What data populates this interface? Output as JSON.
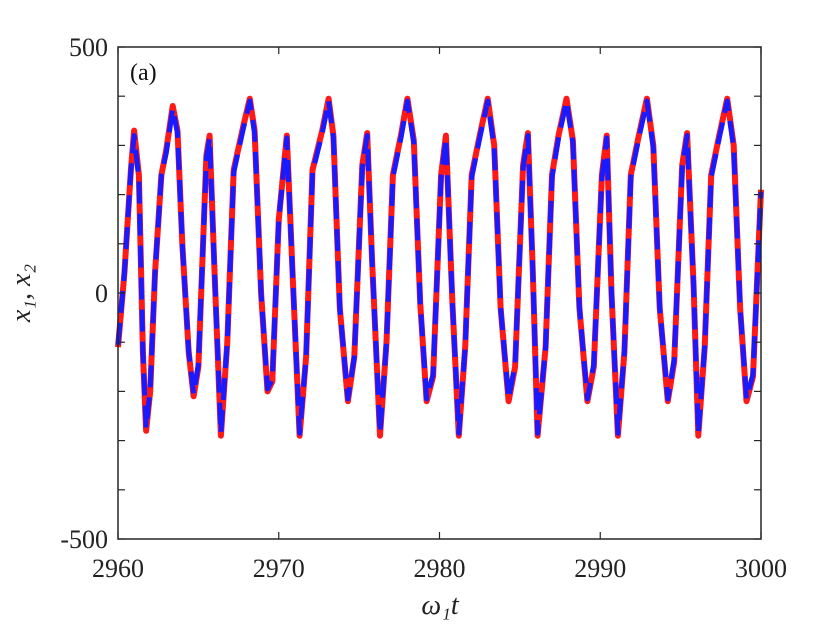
{
  "chart_data": {
    "type": "line",
    "title": "",
    "panel_label": "(a)",
    "xlabel": "ω₁t",
    "ylabel": "x₁, x₂",
    "xlim": [
      2960,
      3000
    ],
    "ylim": [
      -500,
      500
    ],
    "x_ticks": [
      "2960",
      "2970",
      "2980",
      "2990",
      "3000"
    ],
    "y_ticks": [
      "-500",
      "0",
      "500"
    ],
    "grid": false,
    "series": [
      {
        "style": "solid",
        "color": "#ff1a1a",
        "points": [
          [
            2960.0,
            -110
          ],
          [
            2960.4,
            40
          ],
          [
            2960.8,
            250
          ],
          [
            2961.0,
            330
          ],
          [
            2961.3,
            240
          ],
          [
            2961.55,
            -120
          ],
          [
            2961.75,
            -280
          ],
          [
            2962.0,
            -200
          ],
          [
            2962.3,
            40
          ],
          [
            2962.7,
            240
          ],
          [
            2963.0,
            290
          ],
          [
            2963.4,
            380
          ],
          [
            2963.7,
            330
          ],
          [
            2964.0,
            100
          ],
          [
            2964.4,
            -120
          ],
          [
            2964.7,
            -210
          ],
          [
            2965.0,
            -150
          ],
          [
            2965.5,
            280
          ],
          [
            2965.7,
            320
          ],
          [
            2966.0,
            50
          ],
          [
            2966.4,
            -290
          ],
          [
            2966.8,
            -100
          ],
          [
            2967.2,
            250
          ],
          [
            2967.8,
            340
          ],
          [
            2968.2,
            395
          ],
          [
            2968.5,
            330
          ],
          [
            2968.9,
            0
          ],
          [
            2969.3,
            -200
          ],
          [
            2969.6,
            -180
          ],
          [
            2970.0,
            150
          ],
          [
            2970.5,
            320
          ],
          [
            2970.9,
            10
          ],
          [
            2971.3,
            -290
          ],
          [
            2971.7,
            -130
          ],
          [
            2972.1,
            250
          ],
          [
            2972.7,
            330
          ],
          [
            2973.1,
            395
          ],
          [
            2973.4,
            320
          ],
          [
            2973.8,
            -30
          ],
          [
            2974.3,
            -220
          ],
          [
            2974.7,
            -130
          ],
          [
            2975.2,
            260
          ],
          [
            2975.5,
            325
          ],
          [
            2975.8,
            70
          ],
          [
            2976.3,
            -290
          ],
          [
            2976.7,
            -100
          ],
          [
            2977.1,
            240
          ],
          [
            2977.6,
            320
          ],
          [
            2978.0,
            395
          ],
          [
            2978.4,
            310
          ],
          [
            2978.8,
            -20
          ],
          [
            2979.2,
            -220
          ],
          [
            2979.6,
            -170
          ],
          [
            2980.1,
            240
          ],
          [
            2980.4,
            320
          ],
          [
            2980.8,
            -20
          ],
          [
            2981.2,
            -290
          ],
          [
            2981.6,
            -110
          ],
          [
            2982.0,
            240
          ],
          [
            2982.5,
            320
          ],
          [
            2983.0,
            395
          ],
          [
            2983.4,
            300
          ],
          [
            2983.8,
            -30
          ],
          [
            2984.3,
            -220
          ],
          [
            2984.7,
            -150
          ],
          [
            2985.2,
            260
          ],
          [
            2985.5,
            325
          ],
          [
            2985.8,
            50
          ],
          [
            2986.1,
            -290
          ],
          [
            2986.6,
            -110
          ],
          [
            2987.0,
            240
          ],
          [
            2987.4,
            320
          ],
          [
            2987.9,
            395
          ],
          [
            2988.3,
            310
          ],
          [
            2988.7,
            -30
          ],
          [
            2989.2,
            -220
          ],
          [
            2989.6,
            -150
          ],
          [
            2990.1,
            240
          ],
          [
            2990.4,
            320
          ],
          [
            2990.7,
            0
          ],
          [
            2991.1,
            -290
          ],
          [
            2991.5,
            -120
          ],
          [
            2991.9,
            240
          ],
          [
            2992.4,
            320
          ],
          [
            2992.9,
            395
          ],
          [
            2993.3,
            300
          ],
          [
            2993.7,
            -30
          ],
          [
            2994.2,
            -220
          ],
          [
            2994.6,
            -140
          ],
          [
            2995.1,
            260
          ],
          [
            2995.4,
            325
          ],
          [
            2995.8,
            20
          ],
          [
            2996.1,
            -290
          ],
          [
            2996.5,
            -110
          ],
          [
            2996.9,
            240
          ],
          [
            2997.4,
            320
          ],
          [
            2997.9,
            395
          ],
          [
            2998.3,
            300
          ],
          [
            2998.7,
            -30
          ],
          [
            2999.1,
            -220
          ],
          [
            2999.5,
            -170
          ],
          [
            3000.0,
            210
          ]
        ]
      },
      {
        "style": "dashed",
        "color": "#1a1aff",
        "points": [
          [
            2960.0,
            -105
          ],
          [
            2960.4,
            40
          ],
          [
            2960.8,
            250
          ],
          [
            2961.0,
            320
          ],
          [
            2961.3,
            230
          ],
          [
            2961.55,
            -120
          ],
          [
            2961.75,
            -275
          ],
          [
            2962.0,
            -195
          ],
          [
            2962.3,
            40
          ],
          [
            2962.7,
            240
          ],
          [
            2963.0,
            285
          ],
          [
            2963.4,
            375
          ],
          [
            2963.7,
            325
          ],
          [
            2964.0,
            100
          ],
          [
            2964.4,
            -120
          ],
          [
            2964.7,
            -205
          ],
          [
            2965.0,
            -145
          ],
          [
            2965.5,
            275
          ],
          [
            2965.7,
            315
          ],
          [
            2966.0,
            50
          ],
          [
            2966.4,
            -285
          ],
          [
            2966.8,
            -100
          ],
          [
            2967.2,
            245
          ],
          [
            2967.8,
            335
          ],
          [
            2968.2,
            390
          ],
          [
            2968.5,
            325
          ],
          [
            2968.9,
            0
          ],
          [
            2969.3,
            -195
          ],
          [
            2969.6,
            -175
          ],
          [
            2970.0,
            150
          ],
          [
            2970.5,
            315
          ],
          [
            2970.9,
            10
          ],
          [
            2971.3,
            -285
          ],
          [
            2971.7,
            -130
          ],
          [
            2972.1,
            245
          ],
          [
            2972.7,
            325
          ],
          [
            2973.1,
            390
          ],
          [
            2973.4,
            315
          ],
          [
            2973.8,
            -30
          ],
          [
            2974.3,
            -215
          ],
          [
            2974.7,
            -130
          ],
          [
            2975.2,
            255
          ],
          [
            2975.5,
            320
          ],
          [
            2975.8,
            70
          ],
          [
            2976.3,
            -285
          ],
          [
            2976.7,
            -100
          ],
          [
            2977.1,
            235
          ],
          [
            2977.6,
            315
          ],
          [
            2978.0,
            390
          ],
          [
            2978.4,
            305
          ],
          [
            2978.8,
            -20
          ],
          [
            2979.2,
            -215
          ],
          [
            2979.6,
            -165
          ],
          [
            2980.1,
            235
          ],
          [
            2980.4,
            315
          ],
          [
            2980.8,
            -20
          ],
          [
            2981.2,
            -285
          ],
          [
            2981.6,
            -110
          ],
          [
            2982.0,
            235
          ],
          [
            2982.5,
            315
          ],
          [
            2983.0,
            390
          ],
          [
            2983.4,
            295
          ],
          [
            2983.8,
            -30
          ],
          [
            2984.3,
            -215
          ],
          [
            2984.7,
            -145
          ],
          [
            2985.2,
            255
          ],
          [
            2985.5,
            320
          ],
          [
            2985.8,
            50
          ],
          [
            2986.1,
            -285
          ],
          [
            2986.6,
            -110
          ],
          [
            2987.0,
            235
          ],
          [
            2987.4,
            315
          ],
          [
            2987.9,
            390
          ],
          [
            2988.3,
            305
          ],
          [
            2988.7,
            -30
          ],
          [
            2989.2,
            -215
          ],
          [
            2989.6,
            -145
          ],
          [
            2990.1,
            235
          ],
          [
            2990.4,
            315
          ],
          [
            2990.7,
            0
          ],
          [
            2991.1,
            -285
          ],
          [
            2991.5,
            -120
          ],
          [
            2991.9,
            235
          ],
          [
            2992.4,
            315
          ],
          [
            2992.9,
            390
          ],
          [
            2993.3,
            295
          ],
          [
            2993.7,
            -30
          ],
          [
            2994.2,
            -215
          ],
          [
            2994.6,
            -135
          ],
          [
            2995.1,
            255
          ],
          [
            2995.4,
            320
          ],
          [
            2995.8,
            20
          ],
          [
            2996.1,
            -285
          ],
          [
            2996.5,
            -110
          ],
          [
            2996.9,
            235
          ],
          [
            2997.4,
            315
          ],
          [
            2997.9,
            390
          ],
          [
            2998.3,
            295
          ],
          [
            2998.7,
            -30
          ],
          [
            2999.1,
            -215
          ],
          [
            2999.5,
            -165
          ],
          [
            3000.0,
            205
          ]
        ]
      }
    ]
  }
}
